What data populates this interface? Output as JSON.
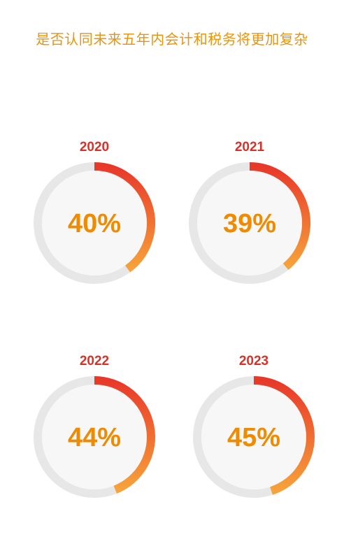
{
  "title": "是否认同未来五年内会计和税务将更加复杂",
  "colors": {
    "title": "#E8950E",
    "year": "#D7322A",
    "value": "#EE8B00",
    "track": "#E7E7E7",
    "inner": "#F6F7F6",
    "arc_start": "#E8382A",
    "arc_end": "#F7A23A"
  },
  "chart_data": {
    "type": "donut",
    "title": "是否认同未来五年内会计和税务将更加复杂",
    "categories": [
      "2020",
      "2021",
      "2022",
      "2023"
    ],
    "values": [
      40,
      39,
      44,
      45
    ],
    "value_labels": [
      "40%",
      "39%",
      "44%",
      "45%"
    ],
    "unit": "%"
  }
}
